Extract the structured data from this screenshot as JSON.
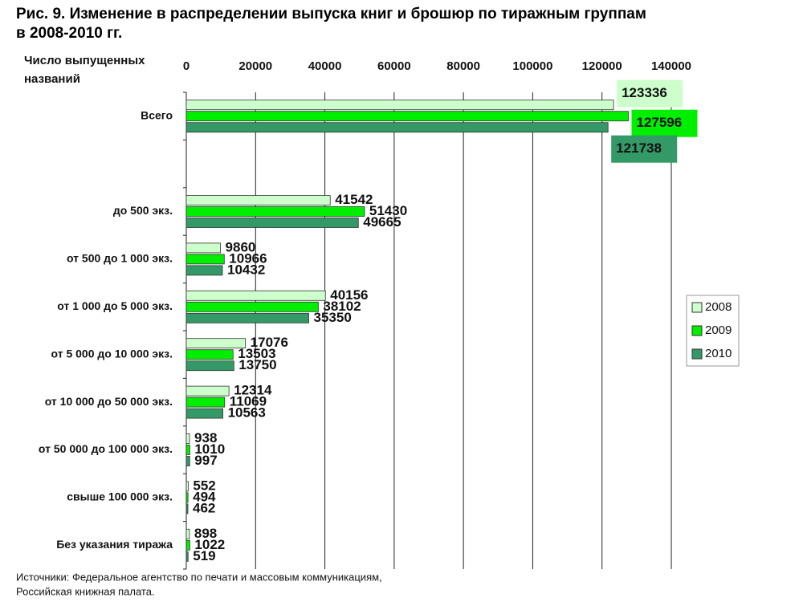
{
  "chart_data": {
    "type": "bar",
    "orientation": "horizontal",
    "title": [
      "Рис. 9. Изменение в распределении выпуска книг и брошюр по тиражным группам",
      "в 2008-2010 гг."
    ],
    "y_label": [
      "Число выпущенных",
      "названий"
    ],
    "source": [
      "Источники: Федеральное агентство по печати и массовым коммуникациям,",
      "Российская книжная палата."
    ],
    "categories": [
      "Всего",
      null,
      "до 500 экз.",
      "от 500 до 1 000 экз.",
      "от 1 000 до 5 000 экз.",
      "от 5 000 до 10 000 экз.",
      "от 10 000 до 50 000 экз.",
      "от 50 000 до 100 000 экз.",
      "свыше 100 000 экз.",
      "Без указания тиража"
    ],
    "series": [
      {
        "name": "2008",
        "color": "#ccffcc",
        "values": [
          123336,
          null,
          41542,
          9860,
          40156,
          17076,
          12314,
          938,
          552,
          898
        ]
      },
      {
        "name": "2009",
        "color": "#00ee00",
        "values": [
          127596,
          null,
          51430,
          10966,
          38102,
          13503,
          11069,
          1010,
          494,
          1022
        ]
      },
      {
        "name": "2010",
        "color": "#339966",
        "values": [
          121738,
          null,
          49665,
          10432,
          35350,
          13750,
          10563,
          997,
          462,
          519
        ]
      }
    ],
    "xlim": [
      0,
      140000
    ],
    "xticks": [
      0,
      20000,
      40000,
      60000,
      80000,
      100000,
      120000,
      140000
    ],
    "grid": true,
    "legend": "right"
  }
}
